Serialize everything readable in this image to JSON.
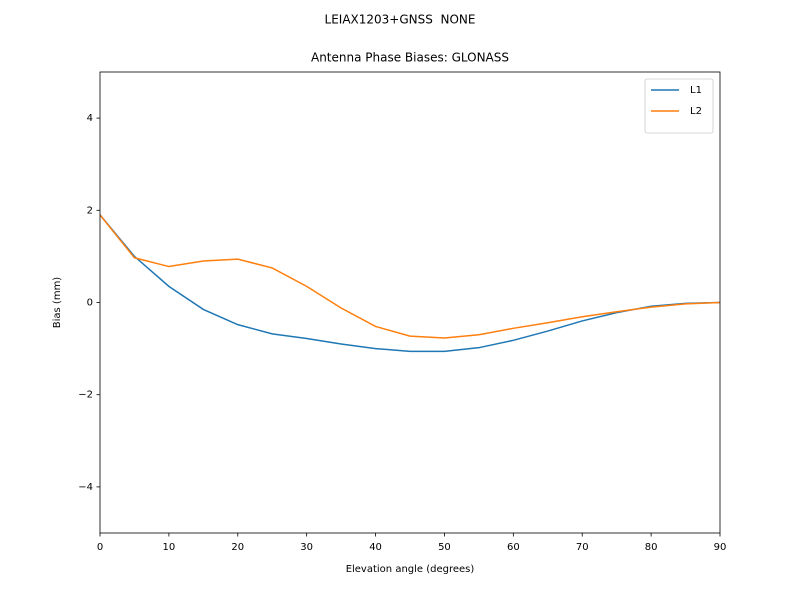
{
  "chart_data": {
    "type": "line",
    "suptitle": "LEIAX1203+GNSS  NONE",
    "title": "Antenna Phase Biases: GLONASS",
    "xlabel": "Elevation angle (degrees)",
    "ylabel": "Bias (mm)",
    "x": [
      0,
      5,
      10,
      15,
      20,
      25,
      30,
      35,
      40,
      45,
      50,
      55,
      60,
      65,
      70,
      75,
      80,
      85,
      90
    ],
    "series": [
      {
        "name": "L1",
        "color": "#1f77b4",
        "values": [
          1.9,
          1.0,
          0.35,
          -0.15,
          -0.48,
          -0.68,
          -0.78,
          -0.9,
          -1.0,
          -1.06,
          -1.06,
          -0.98,
          -0.82,
          -0.62,
          -0.4,
          -0.22,
          -0.08,
          -0.02,
          0
        ]
      },
      {
        "name": "L2",
        "color": "#ff7f0e",
        "values": [
          1.9,
          0.97,
          0.78,
          0.9,
          0.94,
          0.75,
          0.35,
          -0.12,
          -0.52,
          -0.73,
          -0.77,
          -0.7,
          -0.56,
          -0.44,
          -0.31,
          -0.2,
          -0.1,
          -0.03,
          0
        ]
      }
    ],
    "xlim": [
      0,
      90
    ],
    "xticks": [
      0,
      10,
      20,
      30,
      40,
      50,
      60,
      70,
      80,
      90
    ],
    "ylim": [
      -5,
      5
    ],
    "yticks": [
      {
        "value": -4,
        "label": "−4"
      },
      {
        "value": -2,
        "label": "−2"
      },
      0,
      2,
      4
    ],
    "grid": false,
    "legend": "upper right"
  }
}
